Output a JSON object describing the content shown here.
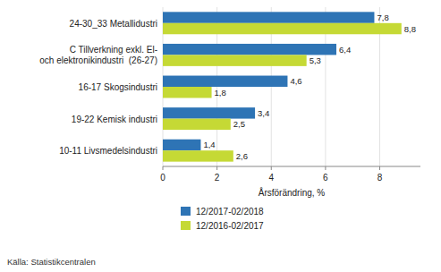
{
  "chart_data": {
    "type": "bar",
    "orientation": "horizontal",
    "categories": [
      "10-11 Livsmedelsindustri",
      "19-22 Kemisk industri",
      "16-17 Skogsindustri",
      "C Tillverkning exkl. El-\noch elektronikindustri  (26-27)",
      "24-30_33 Metallidustri"
    ],
    "series": [
      {
        "name": "12/2017-02/2018",
        "color": "#2E74B5",
        "values": [
          1.4,
          3.4,
          4.6,
          6.4,
          7.8
        ],
        "value_labels": [
          "1,4",
          "3,4",
          "4,6",
          "6,4",
          "7,8"
        ]
      },
      {
        "name": "12/2016-02/2017",
        "color": "#C5D935",
        "values": [
          2.6,
          2.5,
          1.8,
          5.3,
          8.8
        ],
        "value_labels": [
          "2,6",
          "2,5",
          "1,8",
          "5,3",
          "8,8"
        ]
      }
    ],
    "xlabel": "Årsförändring, %",
    "xlim": [
      0,
      9.5
    ],
    "xticks": [
      0,
      2,
      4,
      6,
      8
    ],
    "grid": true,
    "data_labels": true,
    "legend": "bottom",
    "source": "Källa: Statistikcentralen"
  }
}
